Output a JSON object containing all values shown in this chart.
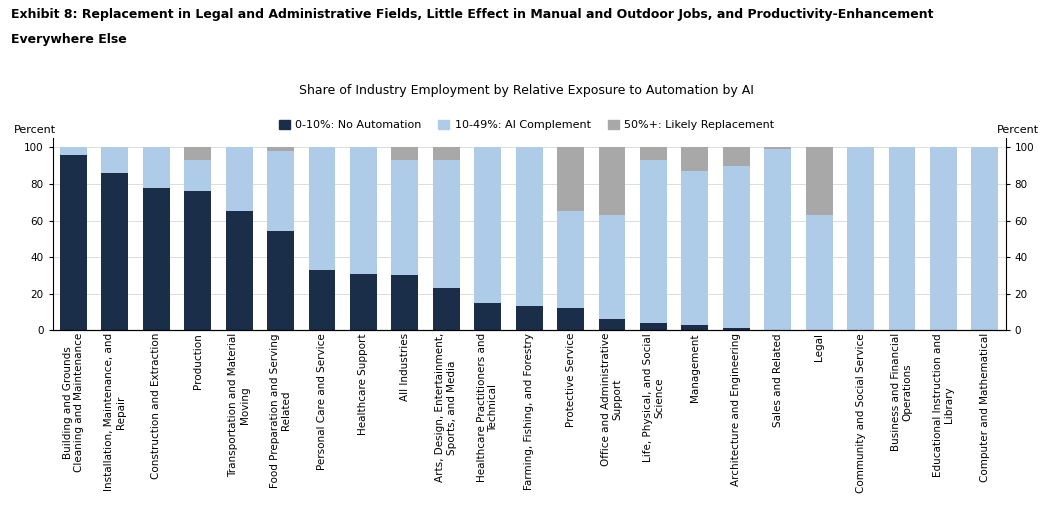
{
  "title_line1": "Exhibit 8: Replacement in Legal and Administrative Fields, Little Effect in Manual and Outdoor Jobs, and Productivity-Enhancement",
  "title_line2": "Everywhere Else",
  "subtitle": "Share of Industry Employment by Relative Exposure to Automation by AI",
  "ylabel": "Percent",
  "legend_labels": [
    "0-10%: No Automation",
    "10-49%: AI Complement",
    "50%+: Likely Replacement"
  ],
  "colors": [
    "#1a2e4a",
    "#aecce8",
    "#a8a8a8"
  ],
  "categories": [
    "Building and Grounds\nCleaning and Maintenance",
    "Installation, Maintenance, and\nRepair",
    "Construction and Extraction",
    "Production",
    "Transportation and Material\nMoving",
    "Food Preparation and Serving\nRelated",
    "Personal Care and Service",
    "Healthcare Support",
    "All Industries",
    "Arts, Design, Entertainment,\nSports, and Media",
    "Healthcare Practitioners and\nTechnical",
    "Farming, Fishing, and Forestry",
    "Protective Service",
    "Office and Administrative\nSupport",
    "Life, Physical, and Social\nScience",
    "Management",
    "Architecture and Engineering",
    "Sales and Related",
    "Legal",
    "Community and Social Service",
    "Business and Financial\nOperations",
    "Educational Instruction and\nLibrary",
    "Computer and Mathematical"
  ],
  "no_automation": [
    96,
    86,
    78,
    76,
    65,
    54,
    33,
    31,
    30,
    23,
    15,
    13,
    12,
    6,
    4,
    3,
    1,
    0,
    0,
    0,
    0,
    0,
    0
  ],
  "ai_complement": [
    4,
    14,
    22,
    17,
    35,
    44,
    67,
    69,
    63,
    70,
    85,
    87,
    53,
    57,
    89,
    84,
    89,
    99,
    63,
    100,
    100,
    100,
    100
  ],
  "likely_replacement": [
    0,
    0,
    0,
    7,
    0,
    2,
    0,
    0,
    7,
    7,
    0,
    0,
    35,
    37,
    7,
    13,
    10,
    1,
    37,
    0,
    0,
    0,
    0
  ],
  "ylim": [
    0,
    105
  ],
  "yticks": [
    0,
    20,
    40,
    60,
    80,
    100
  ],
  "title_fontsize": 9,
  "subtitle_fontsize": 9,
  "legend_fontsize": 8,
  "tick_fontsize": 7.5,
  "bar_width": 0.65
}
